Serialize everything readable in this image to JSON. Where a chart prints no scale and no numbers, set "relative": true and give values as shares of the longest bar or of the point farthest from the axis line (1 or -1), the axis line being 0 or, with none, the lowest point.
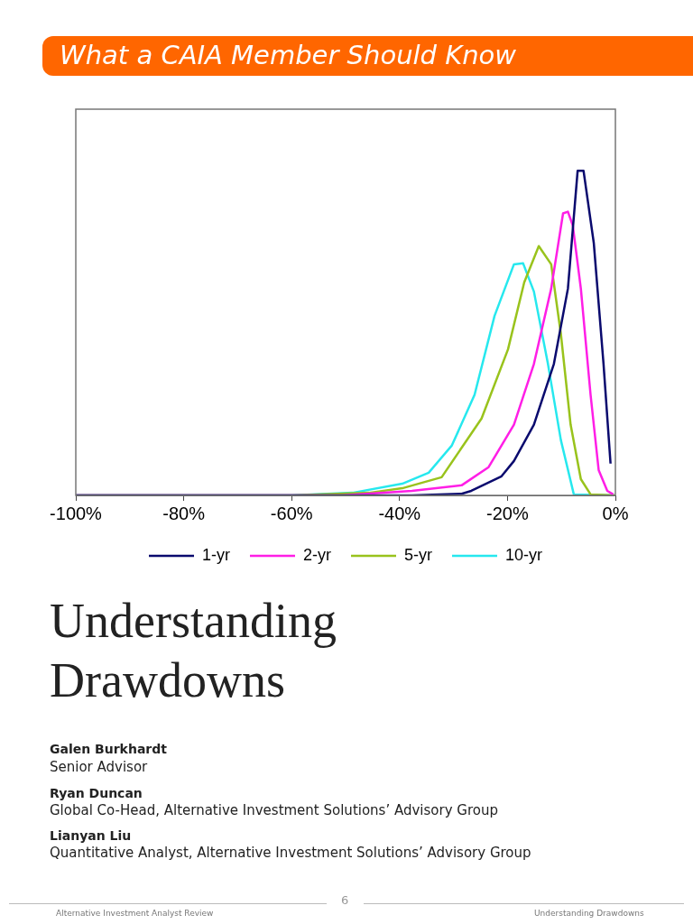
{
  "chart_data": {
    "type": "line",
    "title": "What a CAIA Member Should Know",
    "relative": true,
    "xlim": [
      -100,
      0
    ],
    "xticks": [
      {
        "value": -100,
        "label": "-100%"
      },
      {
        "value": -80,
        "label": "-80%"
      },
      {
        "value": -60,
        "label": "-60%"
      },
      {
        "value": -40,
        "label": "-40%"
      },
      {
        "value": -20,
        "label": "-20%"
      },
      {
        "value": 0,
        "label": "0%"
      }
    ],
    "grid": false,
    "legend": "bottom",
    "marker": "none",
    "line_style": "solid",
    "series": [
      {
        "name": "1-yr",
        "color": "#0a0a6e",
        "x": [
          -100,
          -37.7,
          -28.5,
          -26.7,
          -21.1,
          -18.8,
          -15.1,
          -11.4,
          -8.8,
          -7.0,
          -5.9,
          -4.0,
          -2.2,
          -0.9
        ],
        "values": [
          0,
          0,
          0.005,
          0.014,
          0.059,
          0.106,
          0.218,
          0.405,
          0.637,
          1,
          1,
          0.777,
          0.405,
          0.098
        ]
      },
      {
        "name": "2-yr",
        "color": "#ff1ee6",
        "x": [
          -100,
          -50.6,
          -37.7,
          -28.5,
          -23.5,
          -18.8,
          -15.1,
          -11.9,
          -9.7,
          -8.8,
          -7.9,
          -6.4,
          -4.6,
          -3.1,
          -1.5,
          -0.4
        ],
        "values": [
          0,
          0,
          0.014,
          0.031,
          0.087,
          0.218,
          0.405,
          0.637,
          0.869,
          0.874,
          0.832,
          0.637,
          0.31,
          0.078,
          0.014,
          0.003
        ]
      },
      {
        "name": "5-yr",
        "color": "#99c31c",
        "x": [
          -100,
          -59.7,
          -45.6,
          -39.5,
          -32.2,
          -24.8,
          -19.9,
          -16.9,
          -14.2,
          -11.9,
          -10.1,
          -8.3,
          -6.4,
          -4.6,
          0
        ],
        "values": [
          0,
          0,
          0.008,
          0.022,
          0.056,
          0.237,
          0.45,
          0.656,
          0.768,
          0.712,
          0.497,
          0.218,
          0.05,
          0.003,
          0
        ]
      },
      {
        "name": "10-yr",
        "color": "#26e8ee",
        "x": [
          -100,
          -60,
          -48.7,
          -39.5,
          -34.6,
          -30.3,
          -26.1,
          -22.4,
          -18.8,
          -17.1,
          -15.1,
          -12.5,
          -10.1,
          -7.7,
          0
        ],
        "values": [
          0,
          0,
          0.008,
          0.036,
          0.07,
          0.154,
          0.31,
          0.553,
          0.712,
          0.715,
          0.628,
          0.405,
          0.17,
          0.003,
          0
        ]
      }
    ],
    "annotations": [
      "Understanding Drawdowns",
      "Galen Burkhardt",
      "Senior Advisor",
      "Ryan Duncan",
      "Global Co-Head, Alternative Investment Solutions’ Advisory Group",
      "Lianyan Liu",
      "Quantitative Analyst, Alternative Investment Solutions’ Advisory Group",
      "6",
      "Alternative Investment Analyst Review",
      "Understanding Drawdowns"
    ]
  }
}
